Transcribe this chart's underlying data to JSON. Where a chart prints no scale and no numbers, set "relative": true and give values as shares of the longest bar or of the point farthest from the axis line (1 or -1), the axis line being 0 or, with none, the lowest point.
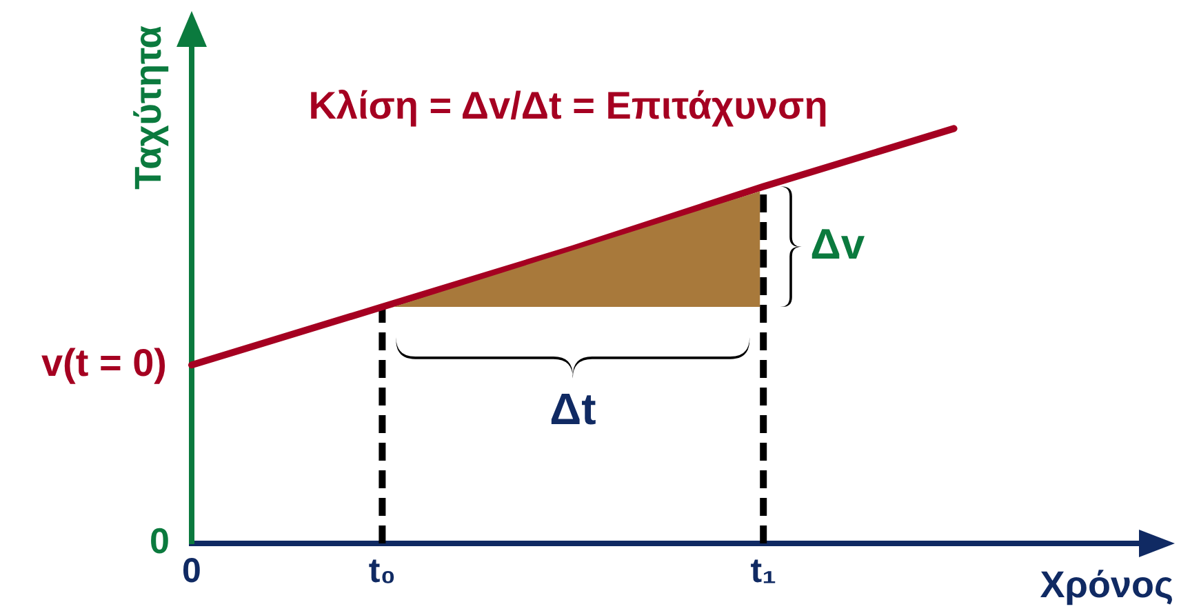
{
  "chart_data": {
    "type": "line",
    "title": "Κλίση = Δv/Δt = Επιτάχυνση",
    "xlabel": "Χρόνος",
    "ylabel": "Ταχύτητα",
    "relative": true,
    "marker": "none",
    "categories": [
      "0",
      "t₀",
      null,
      "t₁",
      null,
      null
    ],
    "series": [
      {
        "values": [
          0.43,
          0.57,
          0.71,
          0.86,
          1,
          null
        ],
        "color": "#a50021"
      }
    ],
    "ref_lines": [
      {
        "axis": "x",
        "value": "t₀",
        "color": "#000000",
        "line_style": "dashed"
      },
      {
        "axis": "x",
        "value": "t₁",
        "color": "#000000",
        "line_style": "dashed"
      }
    ],
    "annotations": [
      {
        "text": "v(t = 0)",
        "x": "0",
        "y": 0.43
      },
      "0",
      "Δv",
      "Δt"
    ]
  }
}
